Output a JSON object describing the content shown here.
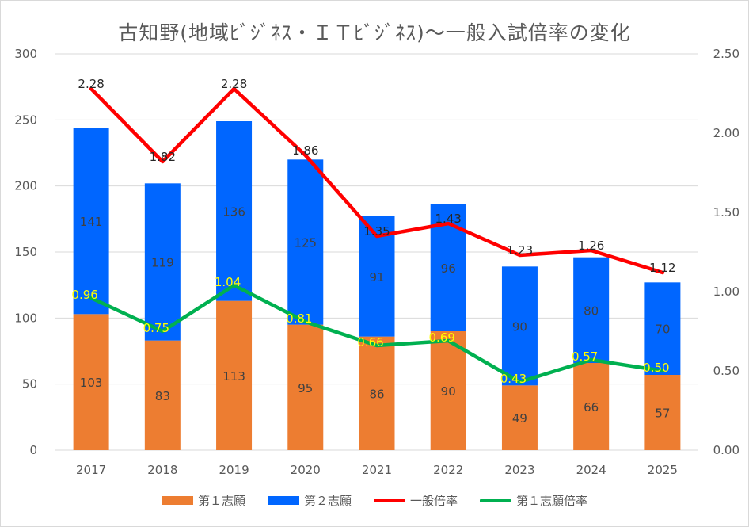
{
  "chart_data": {
    "type": "bar",
    "title": "古知野(地域ﾋﾞｼﾞﾈｽ・ＩＴﾋﾞｼﾞﾈｽ)～一般入試倍率の変化",
    "categories": [
      "2017",
      "2018",
      "2019",
      "2020",
      "2021",
      "2022",
      "2023",
      "2024",
      "2025"
    ],
    "ylim": [
      0,
      300
    ],
    "y_ticks": [
      "0",
      "50",
      "100",
      "150",
      "200",
      "250",
      "300"
    ],
    "y2lim": [
      0,
      2.5
    ],
    "y2_ticks": [
      "0.00",
      "0.50",
      "1.00",
      "1.50",
      "2.00",
      "2.50"
    ],
    "grid": true,
    "legend_position": "bottom",
    "series": [
      {
        "name": "第１志願",
        "kind": "bar",
        "axis": "left",
        "color": "#ed7d31",
        "values": [
          103,
          83,
          113,
          95,
          86,
          90,
          49,
          66,
          57
        ]
      },
      {
        "name": "第２志願",
        "kind": "bar",
        "axis": "left",
        "color": "#0066ff",
        "values": [
          141,
          119,
          136,
          125,
          91,
          96,
          90,
          80,
          70
        ]
      },
      {
        "name": "一般倍率",
        "kind": "line",
        "axis": "right",
        "color": "#ff0000",
        "values": [
          2.28,
          1.82,
          2.28,
          1.86,
          1.35,
          1.43,
          1.23,
          1.26,
          1.12
        ],
        "labels": [
          "2.28",
          "1.82",
          "2.28",
          "1.86",
          "1.35",
          "1.43",
          "1.23",
          "1.26",
          "1.12"
        ]
      },
      {
        "name": "第１志願倍率",
        "kind": "line",
        "axis": "right",
        "color": "#00b050",
        "values": [
          0.96,
          0.75,
          1.04,
          0.81,
          0.66,
          0.69,
          0.43,
          0.57,
          0.5
        ],
        "labels": [
          "0.96",
          "0.75",
          "1.04",
          "0.81",
          "0.66",
          "0.69",
          "0.43",
          "0.57",
          "0.50"
        ]
      }
    ]
  }
}
